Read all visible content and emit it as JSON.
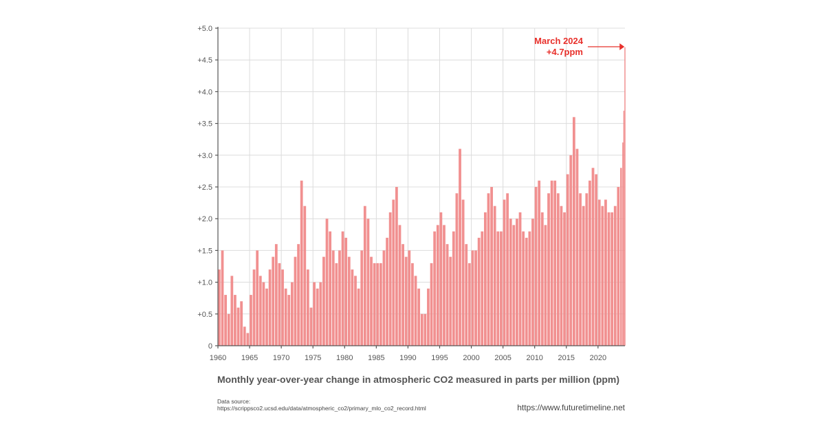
{
  "chart_data": {
    "type": "bar",
    "title": "Monthly year-over-year change in atmospheric CO2 measured in parts per million (ppm)",
    "xlabel": "",
    "ylabel": "",
    "x_range": [
      1960,
      2024.25
    ],
    "ylim": [
      0,
      5.0
    ],
    "x_ticks": [
      "1960",
      "1965",
      "1970",
      "1975",
      "1980",
      "1985",
      "1990",
      "1995",
      "2000",
      "2005",
      "2010",
      "2015",
      "2020"
    ],
    "y_ticks": [
      "0",
      "+0.5",
      "+1.0",
      "+1.5",
      "+2.0",
      "+2.5",
      "+3.0",
      "+3.5",
      "+4.0",
      "+4.5",
      "+5.0"
    ],
    "grid": true,
    "bar_color": "#f08a8a",
    "series": [
      {
        "x": [
          1960.0,
          1960.5,
          1961.0,
          1961.5,
          1962.0,
          1962.5,
          1963.0,
          1963.5,
          1964.0,
          1964.5,
          1965.0,
          1965.5,
          1966.0,
          1966.5,
          1967.0,
          1967.5,
          1968.0,
          1968.5,
          1969.0,
          1969.5,
          1970.0,
          1970.5,
          1971.0,
          1971.5,
          1972.0,
          1972.5,
          1973.0,
          1973.5,
          1974.0,
          1974.5,
          1975.0,
          1975.5,
          1976.0,
          1976.5,
          1977.0,
          1977.5,
          1978.0,
          1978.5,
          1979.0,
          1979.5,
          1980.0,
          1980.5,
          1981.0,
          1981.5,
          1982.0,
          1982.5,
          1983.0,
          1983.5,
          1984.0,
          1984.5,
          1985.0,
          1985.5,
          1986.0,
          1986.5,
          1987.0,
          1987.5,
          1988.0,
          1988.5,
          1989.0,
          1989.5,
          1990.0,
          1990.5,
          1991.0,
          1991.5,
          1992.0,
          1992.5,
          1993.0,
          1993.5,
          1994.0,
          1994.5,
          1995.0,
          1995.5,
          1996.0,
          1996.5,
          1997.0,
          1997.5,
          1998.0,
          1998.5,
          1999.0,
          1999.5,
          2000.0,
          2000.5,
          2001.0,
          2001.5,
          2002.0,
          2002.5,
          2003.0,
          2003.5,
          2004.0,
          2004.5,
          2005.0,
          2005.5,
          2006.0,
          2006.5,
          2007.0,
          2007.5,
          2008.0,
          2008.5,
          2009.0,
          2009.5,
          2010.0,
          2010.5,
          2011.0,
          2011.5,
          2012.0,
          2012.5,
          2013.0,
          2013.5,
          2014.0,
          2014.5,
          2015.0,
          2015.5,
          2016.0,
          2016.5,
          2017.0,
          2017.5,
          2018.0,
          2018.5,
          2019.0,
          2019.5,
          2020.0,
          2020.5,
          2021.0,
          2021.5,
          2022.0,
          2022.5,
          2023.0,
          2023.5,
          2023.83,
          2024.0,
          2024.17
        ],
        "values": [
          1.2,
          1.5,
          0.8,
          0.5,
          1.1,
          0.8,
          0.6,
          0.7,
          0.3,
          0.2,
          0.8,
          1.2,
          1.5,
          1.1,
          1.0,
          0.9,
          1.2,
          1.4,
          1.6,
          1.3,
          1.2,
          0.9,
          0.8,
          1.0,
          1.4,
          1.6,
          2.6,
          2.2,
          1.2,
          0.6,
          1.0,
          0.9,
          1.0,
          1.4,
          2.0,
          1.8,
          1.5,
          1.3,
          1.5,
          1.8,
          1.7,
          1.4,
          1.2,
          1.1,
          0.9,
          1.5,
          2.2,
          2.0,
          1.4,
          1.3,
          1.3,
          1.3,
          1.5,
          1.7,
          2.1,
          2.3,
          2.5,
          1.9,
          1.6,
          1.4,
          1.5,
          1.3,
          1.1,
          0.9,
          0.5,
          0.5,
          0.9,
          1.3,
          1.8,
          1.9,
          2.1,
          1.9,
          1.6,
          1.4,
          1.8,
          2.4,
          3.1,
          2.3,
          1.6,
          1.3,
          1.5,
          1.5,
          1.7,
          1.8,
          2.1,
          2.4,
          2.5,
          2.2,
          1.8,
          1.8,
          2.3,
          2.4,
          2.0,
          1.9,
          2.0,
          2.1,
          1.8,
          1.7,
          1.8,
          2.0,
          2.5,
          2.6,
          2.1,
          1.9,
          2.4,
          2.6,
          2.6,
          2.4,
          2.2,
          2.1,
          2.7,
          3.0,
          3.6,
          3.1,
          2.4,
          2.2,
          2.4,
          2.6,
          2.8,
          2.7,
          2.3,
          2.2,
          2.3,
          2.1,
          2.1,
          2.2,
          2.5,
          2.8,
          3.2,
          3.7,
          4.7
        ]
      }
    ],
    "annotation": {
      "label": "March 2024",
      "value": "+4.7ppm",
      "x": 2024.17,
      "y": 4.7,
      "color": "#e8302b"
    }
  },
  "footer": {
    "source_label": "Data source:",
    "source_url": "https://scrippsco2.ucsd.edu/data/atmospheric_co2/primary_mlo_co2_record.html",
    "website": "https://www.futuretimeline.net"
  }
}
